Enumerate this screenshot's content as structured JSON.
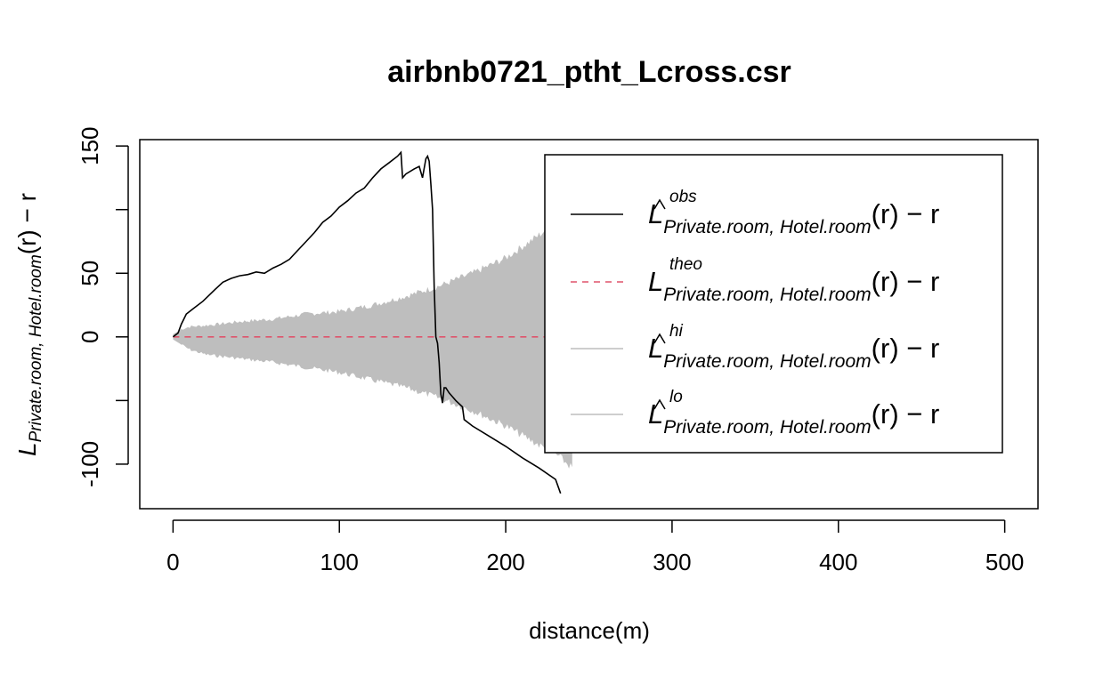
{
  "chart_data": {
    "type": "line",
    "title": "airbnb0721_ptht_Lcross.csr",
    "xlabel": "distance(m)",
    "ylabel": {
      "main": "L",
      "subscript": "Private.room, Hotel.room",
      "suffix": "(r) − r"
    },
    "xlim": [
      -20,
      520
    ],
    "ylim": [
      -135,
      155
    ],
    "xticks": [
      "0",
      "100",
      "200",
      "300",
      "400",
      "500"
    ],
    "yticks": [
      "-100",
      "0",
      "50",
      "150"
    ],
    "ytick_values": [
      -100,
      -50,
      0,
      50,
      100,
      150
    ],
    "grid": false,
    "legend_position": "top-right",
    "colors": {
      "obs": "#000000",
      "theo": "#df536b",
      "envelope": "#bebebe"
    },
    "series": [
      {
        "key": "obs",
        "style": "solid",
        "legend": {
          "main": "L",
          "hat": true,
          "sup": "obs",
          "sub": "Private.room, Hotel.room",
          "suffix": "(r) − r"
        },
        "x": [
          0,
          3,
          5,
          8,
          12,
          18,
          25,
          30,
          35,
          40,
          45,
          50,
          55,
          60,
          65,
          70,
          75,
          80,
          85,
          90,
          95,
          100,
          105,
          110,
          115,
          120,
          125,
          130,
          135,
          137,
          138,
          140,
          145,
          148,
          150,
          152,
          153,
          154,
          155,
          156,
          157,
          158,
          159,
          160,
          161,
          162,
          163,
          164,
          166,
          170,
          174,
          175,
          180,
          190,
          200,
          210,
          220,
          230,
          233
        ],
        "y": [
          0,
          3,
          10,
          18,
          22,
          28,
          37,
          43,
          46,
          48,
          49,
          51,
          50,
          54,
          57,
          61,
          68,
          75,
          82,
          90,
          95,
          102,
          107,
          113,
          117,
          125,
          132,
          137,
          142,
          145,
          125,
          128,
          132,
          134,
          125,
          140,
          142,
          138,
          120,
          100,
          40,
          0,
          -5,
          -20,
          -45,
          -52,
          -40,
          -40,
          -44,
          -50,
          -55,
          -65,
          -70,
          -78,
          -86,
          -95,
          -103,
          -112,
          -123
        ]
      },
      {
        "key": "theo",
        "style": "dashed",
        "legend": {
          "main": "L",
          "hat": false,
          "sup": "theo",
          "sub": "Private.room, Hotel.room",
          "suffix": "(r) − r"
        },
        "x": [
          0,
          418
        ],
        "y": [
          0,
          0
        ]
      },
      {
        "key": "hi",
        "style": "band-upper",
        "legend": {
          "main": "L",
          "hat": true,
          "sup": "hi",
          "sub": "Private.room, Hotel.room",
          "suffix": "(r) − r"
        },
        "x": [
          0,
          5,
          10,
          20,
          40,
          60,
          80,
          100,
          120,
          140,
          160,
          180,
          200,
          220,
          230,
          240
        ],
        "y": [
          2,
          6,
          8,
          9,
          12,
          14,
          18,
          20,
          25,
          32,
          40,
          50,
          62,
          80,
          90,
          98
        ]
      },
      {
        "key": "lo",
        "style": "band-lower",
        "legend": {
          "main": "L",
          "hat": true,
          "sup": "lo",
          "sub": "Private.room, Hotel.room",
          "suffix": "(r) − r"
        },
        "x": [
          0,
          5,
          10,
          20,
          40,
          60,
          80,
          100,
          120,
          140,
          160,
          180,
          200,
          220,
          230,
          240
        ],
        "y": [
          -2,
          -6,
          -10,
          -14,
          -17,
          -20,
          -24,
          -28,
          -34,
          -40,
          -48,
          -58,
          -70,
          -85,
          -92,
          -103
        ]
      }
    ]
  }
}
